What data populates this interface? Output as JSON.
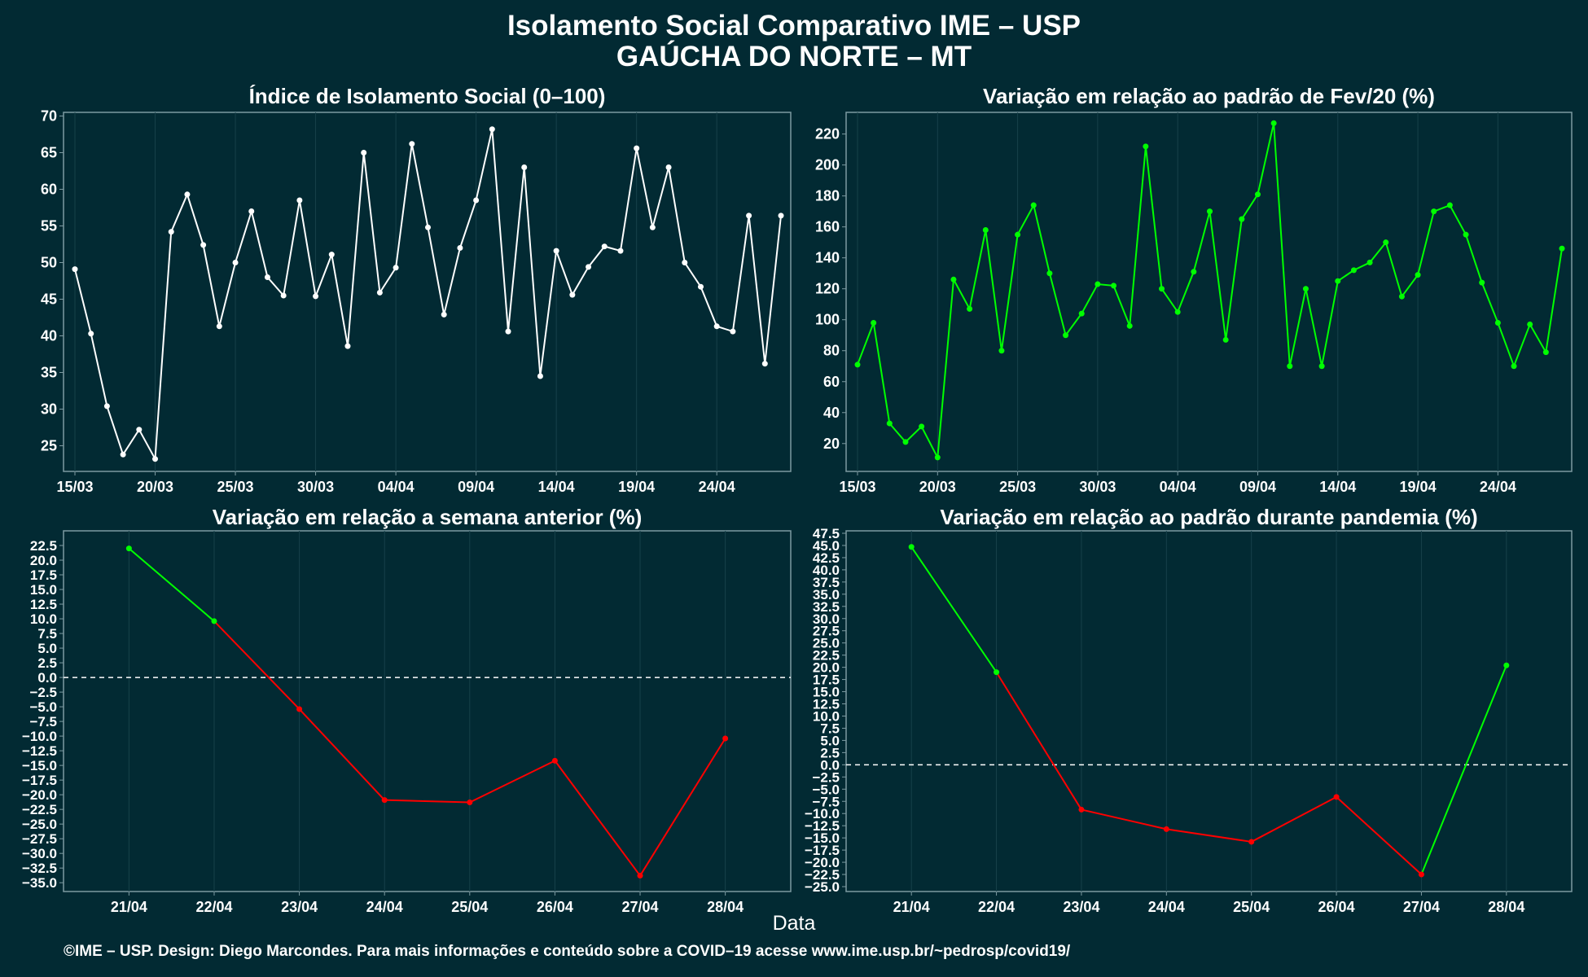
{
  "title": "Isolamento Social Comparativo IME – USP",
  "subtitle": "GAÚCHA DO NORTE – MT",
  "xlabel": "Data",
  "credit": "©IME – USP. Design: Diego Marcondes. Para mais informações e conteúdo sobre a COVID–19 acesse www.ime.usp.br/~pedrosp/covid19/",
  "colors": {
    "background": "#022a33",
    "text": "#ffffff",
    "panel_border": "#7d9aa1",
    "grid": "#17414a",
    "white_series": "#ffffff",
    "green_series": "#00ff00",
    "red_series": "#ff0000",
    "zero_line": "#ffffff"
  },
  "chart_data": [
    {
      "type": "line",
      "title": "Índice de Isolamento Social (0–100)",
      "color": "white",
      "x_start": "15/03",
      "x_ticks": [
        "15/03",
        "20/03",
        "25/03",
        "30/03",
        "04/04",
        "09/04",
        "14/04",
        "19/04",
        "24/04"
      ],
      "y_ticks": [
        25,
        30,
        35,
        40,
        45,
        50,
        55,
        60,
        65,
        70
      ],
      "ylim": [
        21.5,
        70.5
      ],
      "values": [
        49.1,
        40.3,
        30.4,
        23.8,
        27.2,
        23.2,
        54.2,
        59.3,
        52.4,
        41.3,
        50.0,
        57.0,
        48.0,
        45.5,
        58.5,
        45.4,
        51.1,
        38.6,
        65.0,
        45.9,
        49.3,
        66.2,
        54.8,
        42.9,
        52.0,
        58.5,
        68.2,
        40.6,
        63.0,
        34.5,
        51.6,
        45.6,
        49.4,
        52.2,
        51.6,
        65.6,
        54.8,
        63.0,
        50.0,
        46.7,
        41.3,
        40.6,
        56.4,
        36.2,
        56.4
      ]
    },
    {
      "type": "line",
      "title": "Variação em relação ao padrão de Fev/20 (%)",
      "color": "green",
      "x_start": "15/03",
      "x_ticks": [
        "15/03",
        "20/03",
        "25/03",
        "30/03",
        "04/04",
        "09/04",
        "14/04",
        "19/04",
        "24/04"
      ],
      "y_ticks": [
        20,
        40,
        60,
        80,
        100,
        120,
        140,
        160,
        180,
        200,
        220
      ],
      "ylim": [
        2,
        234
      ],
      "values": [
        71,
        98,
        33,
        21,
        31,
        11,
        126,
        107,
        158,
        80,
        155,
        174,
        130,
        90,
        104,
        123,
        122,
        96,
        212,
        120,
        105,
        131,
        170,
        87,
        165,
        181,
        227,
        70,
        120,
        70,
        125,
        132,
        137,
        150,
        115,
        129,
        170,
        174,
        155,
        124,
        98,
        70,
        97,
        79,
        146
      ]
    },
    {
      "type": "line",
      "title": "Variação em relação a semana anterior (%)",
      "colored_by_sign": true,
      "categories": [
        "21/04",
        "22/04",
        "23/04",
        "24/04",
        "25/04",
        "26/04",
        "27/04",
        "28/04"
      ],
      "values": [
        22.0,
        9.6,
        -5.4,
        -20.9,
        -21.3,
        -14.2,
        -33.8,
        -10.4
      ],
      "y_ticks": [
        -35.0,
        -32.5,
        -30.0,
        -27.5,
        -25.0,
        -22.5,
        -20.0,
        -17.5,
        -15.0,
        -12.5,
        -10.0,
        -7.5,
        -5.0,
        -2.5,
        0.0,
        2.5,
        5.0,
        7.5,
        10.0,
        12.5,
        15.0,
        17.5,
        20.0,
        22.5
      ],
      "ylim": [
        -36.5,
        25.0
      ],
      "zero_line": true
    },
    {
      "type": "line",
      "title": "Variação em relação ao padrão durante pandemia (%)",
      "colored_by_sign": true,
      "categories": [
        "21/04",
        "22/04",
        "23/04",
        "24/04",
        "25/04",
        "26/04",
        "27/04",
        "28/04"
      ],
      "values": [
        44.7,
        19.0,
        -9.2,
        -13.2,
        -15.8,
        -6.6,
        -22.5,
        20.4
      ],
      "y_ticks": [
        -25.0,
        -22.5,
        -20.0,
        -17.5,
        -15.0,
        -12.5,
        -10.0,
        -7.5,
        -5.0,
        -2.5,
        0.0,
        2.5,
        5.0,
        7.5,
        10.0,
        12.5,
        15.0,
        17.5,
        20.0,
        22.5,
        25.0,
        27.5,
        30.0,
        32.5,
        35.0,
        37.5,
        40.0,
        42.5,
        45.0,
        47.5
      ],
      "ylim": [
        -26.0,
        48.0
      ],
      "zero_line": true
    }
  ]
}
